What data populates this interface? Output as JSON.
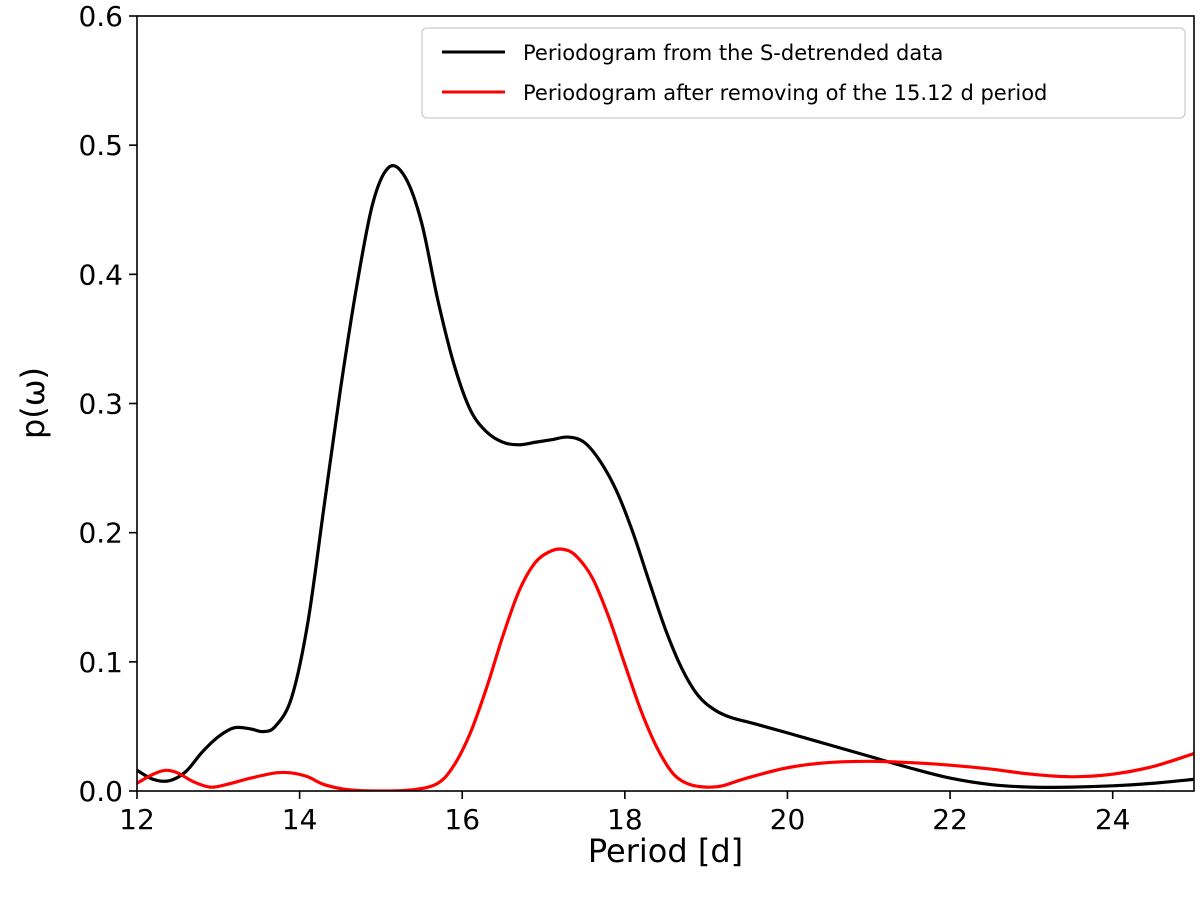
{
  "chart_data": {
    "type": "line",
    "xlabel": "Period [d]",
    "ylabel": "p(ω)",
    "xlim": [
      12,
      25
    ],
    "ylim": [
      0,
      0.6
    ],
    "xticks": [
      12,
      14,
      16,
      18,
      20,
      22,
      24
    ],
    "xtick_labels": [
      "12",
      "14",
      "16",
      "18",
      "20",
      "22",
      "24"
    ],
    "yticks": [
      0.0,
      0.1,
      0.2,
      0.3,
      0.4,
      0.5,
      0.6
    ],
    "ytick_labels": [
      "0.0",
      "0.1",
      "0.2",
      "0.3",
      "0.4",
      "0.5",
      "0.6"
    ],
    "grid": false,
    "legend_position": "top-right",
    "series": [
      {
        "name": "Periodogram from the S-detrended data",
        "color": "#000000",
        "points": [
          [
            12.0,
            0.016
          ],
          [
            12.2,
            0.009
          ],
          [
            12.4,
            0.008
          ],
          [
            12.6,
            0.015
          ],
          [
            12.8,
            0.03
          ],
          [
            13.0,
            0.042
          ],
          [
            13.2,
            0.049
          ],
          [
            13.4,
            0.048
          ],
          [
            13.55,
            0.046
          ],
          [
            13.7,
            0.05
          ],
          [
            13.9,
            0.072
          ],
          [
            14.1,
            0.13
          ],
          [
            14.3,
            0.22
          ],
          [
            14.5,
            0.31
          ],
          [
            14.7,
            0.39
          ],
          [
            14.9,
            0.455
          ],
          [
            15.1,
            0.483
          ],
          [
            15.3,
            0.475
          ],
          [
            15.5,
            0.44
          ],
          [
            15.7,
            0.38
          ],
          [
            15.9,
            0.33
          ],
          [
            16.1,
            0.295
          ],
          [
            16.3,
            0.278
          ],
          [
            16.5,
            0.27
          ],
          [
            16.7,
            0.268
          ],
          [
            16.9,
            0.27
          ],
          [
            17.1,
            0.272
          ],
          [
            17.3,
            0.274
          ],
          [
            17.5,
            0.27
          ],
          [
            17.7,
            0.255
          ],
          [
            17.9,
            0.232
          ],
          [
            18.1,
            0.2
          ],
          [
            18.3,
            0.162
          ],
          [
            18.5,
            0.125
          ],
          [
            18.7,
            0.095
          ],
          [
            18.9,
            0.074
          ],
          [
            19.1,
            0.063
          ],
          [
            19.3,
            0.057
          ],
          [
            19.6,
            0.052
          ],
          [
            20.0,
            0.045
          ],
          [
            20.5,
            0.036
          ],
          [
            21.0,
            0.027
          ],
          [
            21.5,
            0.018
          ],
          [
            22.0,
            0.01
          ],
          [
            22.5,
            0.005
          ],
          [
            23.0,
            0.003
          ],
          [
            23.5,
            0.003
          ],
          [
            24.0,
            0.004
          ],
          [
            24.5,
            0.006
          ],
          [
            25.0,
            0.009
          ]
        ]
      },
      {
        "name": "Periodogram after removing of the 15.12 d period",
        "color": "#ff0000",
        "points": [
          [
            12.0,
            0.006
          ],
          [
            12.2,
            0.013
          ],
          [
            12.35,
            0.016
          ],
          [
            12.5,
            0.014
          ],
          [
            12.7,
            0.007
          ],
          [
            12.9,
            0.003
          ],
          [
            13.1,
            0.005
          ],
          [
            13.4,
            0.01
          ],
          [
            13.7,
            0.014
          ],
          [
            13.9,
            0.014
          ],
          [
            14.1,
            0.011
          ],
          [
            14.3,
            0.005
          ],
          [
            14.6,
            0.001
          ],
          [
            15.0,
            0.0
          ],
          [
            15.4,
            0.001
          ],
          [
            15.7,
            0.006
          ],
          [
            15.9,
            0.02
          ],
          [
            16.1,
            0.045
          ],
          [
            16.3,
            0.08
          ],
          [
            16.5,
            0.12
          ],
          [
            16.7,
            0.155
          ],
          [
            16.9,
            0.177
          ],
          [
            17.1,
            0.186
          ],
          [
            17.25,
            0.187
          ],
          [
            17.4,
            0.182
          ],
          [
            17.6,
            0.165
          ],
          [
            17.8,
            0.135
          ],
          [
            18.0,
            0.098
          ],
          [
            18.2,
            0.062
          ],
          [
            18.4,
            0.033
          ],
          [
            18.6,
            0.013
          ],
          [
            18.8,
            0.005
          ],
          [
            19.0,
            0.003
          ],
          [
            19.2,
            0.004
          ],
          [
            19.5,
            0.01
          ],
          [
            20.0,
            0.018
          ],
          [
            20.5,
            0.022
          ],
          [
            21.0,
            0.023
          ],
          [
            21.5,
            0.022
          ],
          [
            22.0,
            0.02
          ],
          [
            22.5,
            0.017
          ],
          [
            23.0,
            0.013
          ],
          [
            23.5,
            0.011
          ],
          [
            24.0,
            0.013
          ],
          [
            24.5,
            0.019
          ],
          [
            25.0,
            0.029
          ]
        ]
      }
    ]
  }
}
